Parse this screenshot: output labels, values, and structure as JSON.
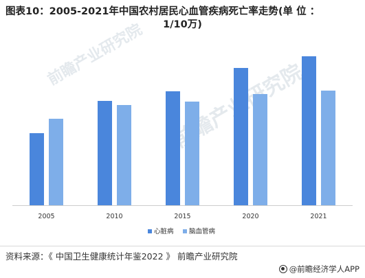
{
  "title_line1": "图表10：2005-2021年中国农村居民心血管疾病死亡率走势(单 位 ：",
  "title_line2": "1/10万)",
  "source": "资料来源：《 中国卫生健康统计年鉴2022 》 前瞻产业研究院",
  "brand": "@前瞻经济学人APP",
  "watermark": "前瞻产业研究院",
  "chart_data": {
    "type": "bar",
    "categories": [
      "2005",
      "2010",
      "2015",
      "2020",
      "2021"
    ],
    "series": [
      {
        "name": "心脏病",
        "color": "#4a86dc",
        "values": [
          105,
          152,
          166,
          200,
          217
        ]
      },
      {
        "name": "脑血管病",
        "color": "#7eaee9",
        "values": [
          126,
          146,
          151,
          162,
          167
        ]
      }
    ],
    "ylim": [
      0,
      260
    ],
    "grid": false,
    "legend": "bottom-center",
    "xlabel": "",
    "ylabel": ""
  }
}
